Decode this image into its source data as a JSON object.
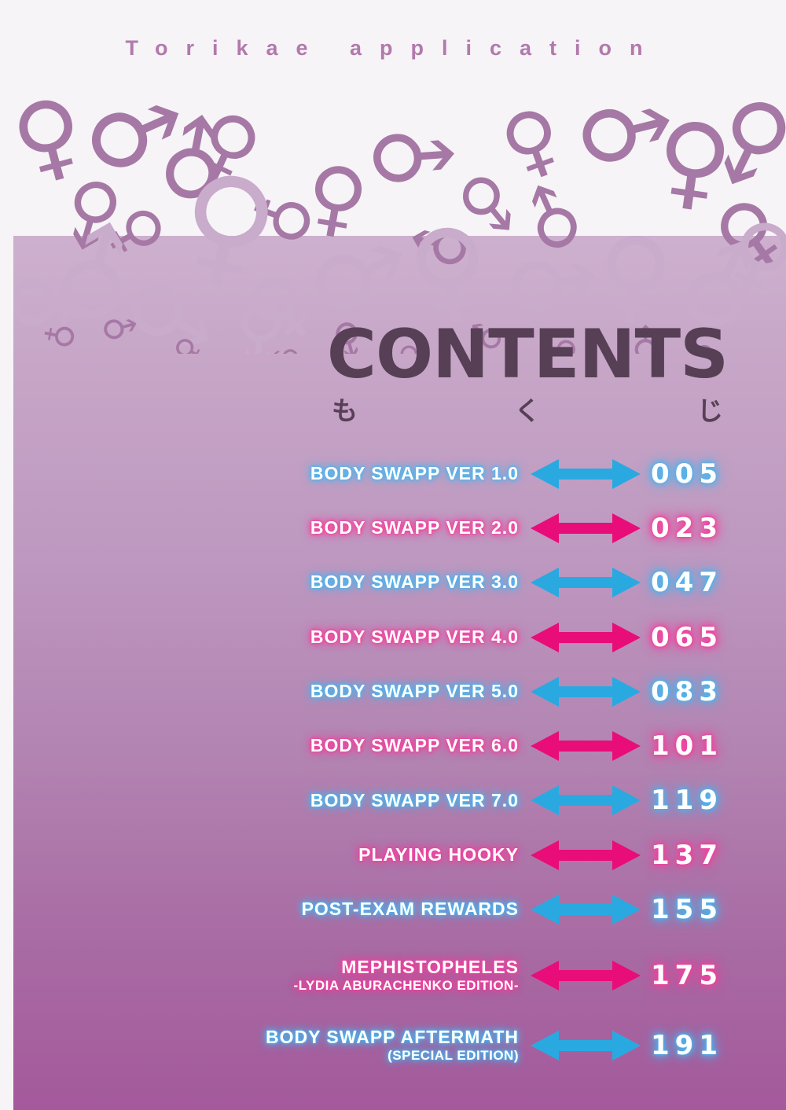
{
  "header": {
    "title": "Torikae application"
  },
  "contents": {
    "title": "CONTENTS",
    "furigana": [
      "も",
      "く",
      "じ"
    ]
  },
  "colors": {
    "blue": "#2aa9e1",
    "pink": "#e80d78",
    "blue_glow": "#4ab5ee",
    "pink_glow": "#f43f9d",
    "heading": "#574055",
    "header_text": "#b279ac",
    "symbol_dark": "#a678a5",
    "symbol_light": "#c9abcb"
  },
  "decor": {
    "male_symbol": "♂",
    "female_symbol": "♀"
  },
  "toc": {
    "entries": [
      {
        "title": "BODY SWAPP VER 1.0",
        "subtitle": "",
        "page": "005",
        "color": "blue"
      },
      {
        "title": "BODY SWAPP VER 2.0",
        "subtitle": "",
        "page": "023",
        "color": "pink"
      },
      {
        "title": "BODY SWAPP VER 3.0",
        "subtitle": "",
        "page": "047",
        "color": "blue"
      },
      {
        "title": "BODY SWAPP VER 4.0",
        "subtitle": "",
        "page": "065",
        "color": "pink"
      },
      {
        "title": "BODY SWAPP VER 5.0",
        "subtitle": "",
        "page": "083",
        "color": "blue"
      },
      {
        "title": "BODY SWAPP VER 6.0",
        "subtitle": "",
        "page": "101",
        "color": "pink"
      },
      {
        "title": "BODY SWAPP VER 7.0",
        "subtitle": "",
        "page": "119",
        "color": "blue"
      },
      {
        "title": "PLAYING HOOKY",
        "subtitle": "",
        "page": "137",
        "color": "pink"
      },
      {
        "title": "POST-EXAM REWARDS",
        "subtitle": "",
        "page": "155",
        "color": "blue"
      },
      {
        "title": "MEPHISTOPHELES",
        "subtitle": "-LYDIA ABURACHENKO EDITION-",
        "page": "175",
        "color": "pink"
      },
      {
        "title": "BODY SWAPP AFTERMATH",
        "subtitle": "(SPECIAL EDITION)",
        "page": "191",
        "color": "blue"
      }
    ]
  }
}
